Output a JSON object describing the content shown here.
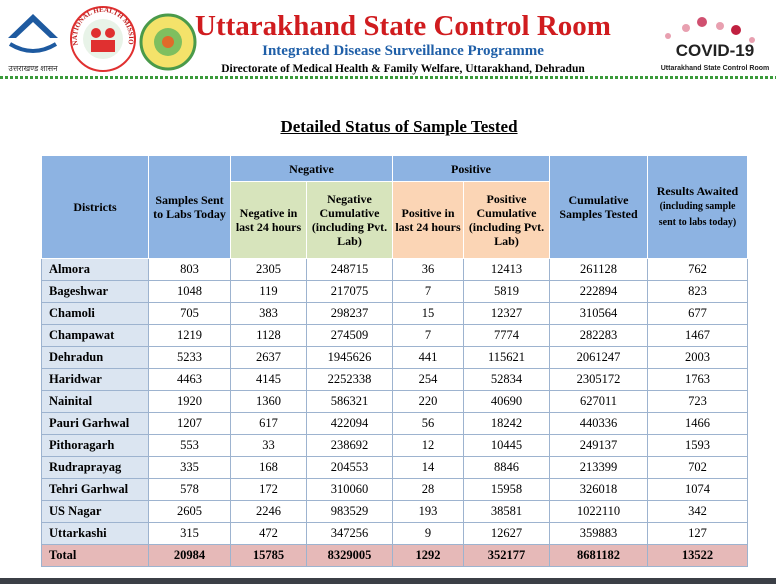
{
  "header": {
    "title": "Uttarakhand State Control Room",
    "subtitle": "Integrated Disease Surveillance Programme",
    "line3": "Directorate of Medical Health & Family Welfare, Uttarakhand, Dehradun",
    "emblem_text": "उत्तराखण्ड शासन",
    "nhm_text": "NATIONAL HEALTH MISSION",
    "covid_title": "COVID-19",
    "covid_subtitle": "Uttarakhand State Control Room"
  },
  "report_title": "Detailed Status of Sample Tested",
  "table": {
    "headers": {
      "districts": "Districts",
      "samples": "Samples Sent to Labs Today",
      "negative": "Negative",
      "neg24": "Negative in last 24 hours",
      "negcum": "Negative Cumulative (including Pvt. Lab)",
      "positive": "Positive",
      "pos24": "Positive in last 24 hours",
      "poscum": "Positive Cumulative (including Pvt. Lab)",
      "cumsamples": "Cumulative Samples Tested",
      "awaited": "Results Awaited",
      "awaited_note": "(including sample sent to labs today)"
    },
    "rows": [
      [
        "Almora",
        803,
        2305,
        248715,
        36,
        12413,
        261128,
        762
      ],
      [
        "Bageshwar",
        1048,
        119,
        217075,
        7,
        5819,
        222894,
        823
      ],
      [
        "Chamoli",
        705,
        383,
        298237,
        15,
        12327,
        310564,
        677
      ],
      [
        "Champawat",
        1219,
        1128,
        274509,
        7,
        7774,
        282283,
        1467
      ],
      [
        "Dehradun",
        5233,
        2637,
        1945626,
        441,
        115621,
        2061247,
        2003
      ],
      [
        "Haridwar",
        4463,
        4145,
        2252338,
        254,
        52834,
        2305172,
        1763
      ],
      [
        "Nainital",
        1920,
        1360,
        586321,
        220,
        40690,
        627011,
        723
      ],
      [
        "Pauri Garhwal",
        1207,
        617,
        422094,
        56,
        18242,
        440336,
        1466
      ],
      [
        "Pithoragarh",
        553,
        33,
        238692,
        12,
        10445,
        249137,
        1593
      ],
      [
        "Rudraprayag",
        335,
        168,
        204553,
        14,
        8846,
        213399,
        702
      ],
      [
        "Tehri Garhwal",
        578,
        172,
        310060,
        28,
        15958,
        326018,
        1074
      ],
      [
        "US Nagar",
        2605,
        2246,
        983529,
        193,
        38581,
        1022110,
        342
      ],
      [
        "Uttarkashi",
        315,
        472,
        347256,
        9,
        12627,
        359883,
        127
      ]
    ],
    "total": [
      "Total",
      20984,
      15785,
      8329005,
      1292,
      352177,
      8681182,
      13522
    ]
  }
}
